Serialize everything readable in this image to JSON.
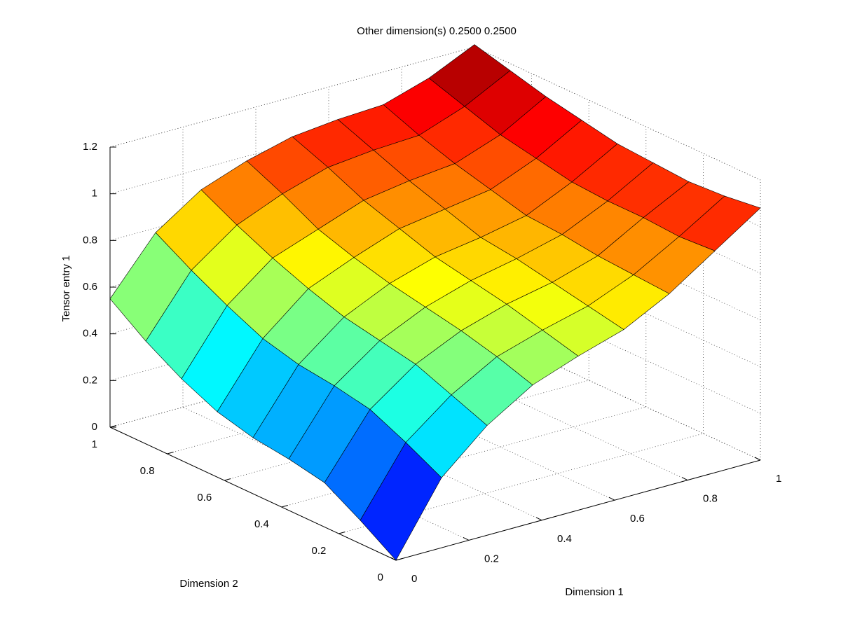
{
  "chart_data": {
    "type": "surface",
    "title": "Other dimension(s) 0.2500 0.2500",
    "xlabel": "Dimension 1",
    "ylabel": "Dimension 2",
    "zlabel": "Tensor entry 1",
    "x": [
      0,
      0.125,
      0.25,
      0.375,
      0.5,
      0.625,
      0.75,
      0.875,
      1
    ],
    "y": [
      0,
      0.125,
      0.25,
      0.375,
      0.5,
      0.625,
      0.75,
      0.875,
      1
    ],
    "z": [
      [
        0,
        0.3,
        0.47,
        0.59,
        0.66,
        0.72,
        0.82,
        0.95,
        1.08
      ],
      [
        0.1,
        0.38,
        0.53,
        0.64,
        0.7,
        0.75,
        0.83,
        0.94,
        1.06
      ],
      [
        0.19,
        0.45,
        0.59,
        0.68,
        0.74,
        0.78,
        0.84,
        0.95,
        1.05
      ],
      [
        0.22,
        0.48,
        0.62,
        0.71,
        0.77,
        0.81,
        0.86,
        0.95,
        1.06
      ],
      [
        0.24,
        0.5,
        0.65,
        0.74,
        0.8,
        0.83,
        0.87,
        0.96,
        1.07
      ],
      [
        0.28,
        0.54,
        0.7,
        0.78,
        0.85,
        0.88,
        0.91,
        0.99,
        1.1
      ],
      [
        0.35,
        0.61,
        0.76,
        0.83,
        0.9,
        0.93,
        0.95,
        1.02,
        1.13
      ],
      [
        0.44,
        0.69,
        0.83,
        0.91,
        0.97,
        0.99,
        1.0,
        1.07,
        1.17
      ],
      [
        0.55,
        0.78,
        0.91,
        0.98,
        1.03,
        1.05,
        1.06,
        1.12,
        1.21
      ]
    ],
    "colormap": "jet",
    "xlim": [
      0,
      1
    ],
    "ylim": [
      0,
      1
    ],
    "zlim": [
      0,
      1.2
    ],
    "xticks": [
      0,
      0.2,
      0.4,
      0.6,
      0.8,
      1
    ],
    "yticks": [
      0,
      0.2,
      0.4,
      0.6,
      0.8,
      1
    ],
    "zticks": [
      0,
      0.2,
      0.4,
      0.6,
      0.8,
      1,
      1.2
    ],
    "grid": true
  }
}
